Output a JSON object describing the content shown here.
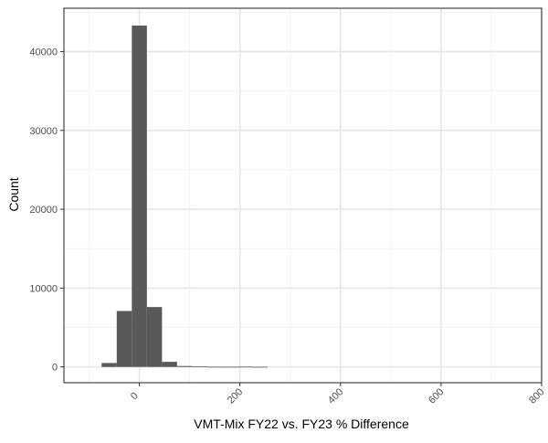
{
  "chart_data": {
    "type": "bar",
    "title": "",
    "xlabel": "VMT-Mix FY22 vs. FY23 % Difference",
    "ylabel": "Count",
    "xlim": [
      -150,
      800
    ],
    "ylim": [
      -2000,
      45500
    ],
    "grid": true,
    "legend": "none",
    "x_ticks": [
      0,
      200,
      400,
      600,
      800
    ],
    "y_ticks": [
      0,
      10000,
      20000,
      30000,
      40000
    ],
    "x_minor_gridlines": [
      -100,
      100,
      300,
      500,
      700
    ],
    "y_minor_gridlines": [
      5000,
      15000,
      25000,
      35000,
      45000
    ],
    "x_tick_label_rotation": -45,
    "bar_color": "#595959",
    "bins": [
      {
        "x0": -75,
        "x1": -45,
        "count": 500
      },
      {
        "x0": -45,
        "x1": -15,
        "count": 7100
      },
      {
        "x0": -15,
        "x1": 15,
        "count": 43300
      },
      {
        "x0": 15,
        "x1": 45,
        "count": 7600
      },
      {
        "x0": 45,
        "x1": 75,
        "count": 650
      },
      {
        "x0": 75,
        "x1": 105,
        "count": 120
      },
      {
        "x0": 105,
        "x1": 135,
        "count": 60
      },
      {
        "x0": 135,
        "x1": 165,
        "count": 25
      },
      {
        "x0": 165,
        "x1": 195,
        "count": 20
      },
      {
        "x0": 195,
        "x1": 225,
        "count": 35
      },
      {
        "x0": 225,
        "x1": 255,
        "count": 15
      }
    ]
  }
}
